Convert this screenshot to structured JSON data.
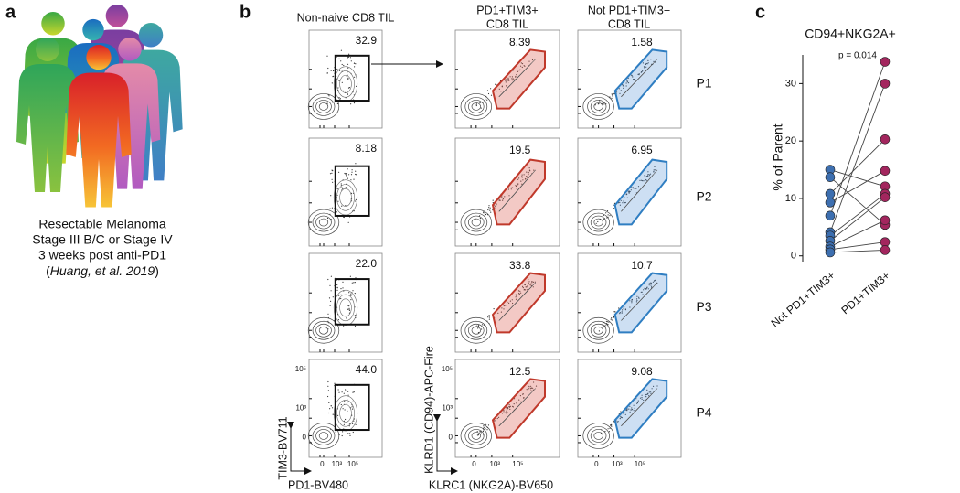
{
  "panel_a": {
    "label": "a",
    "caption": [
      "Resectable Melanoma",
      "Stage III B/C or Stage IV",
      "3 weeks post anti-PD1"
    ],
    "citation": [
      "(",
      "Huang, et al. 2019",
      ")"
    ]
  },
  "panel_b": {
    "label": "b",
    "columns": [
      [
        "Non-naive CD8 TIL"
      ],
      [
        "PD1+TIM3+",
        "CD8 TIL"
      ],
      [
        "Not PD1+TIM3+",
        "CD8 TIL"
      ]
    ],
    "rows": [
      "P1",
      "P2",
      "P3",
      "P4"
    ],
    "gates": [
      [
        "32.9",
        "8.39",
        "1.58"
      ],
      [
        "8.18",
        "19.5",
        "6.95"
      ],
      [
        "22.0",
        "33.8",
        "10.7"
      ],
      [
        "44.0",
        "12.5",
        "9.08"
      ]
    ],
    "tick_labels": [
      "0",
      "10³",
      "10⁵"
    ],
    "axis_labels": {
      "x1": "PD1-BV480",
      "y1": "TIM3-BV711",
      "x2": "KLRC1 (NKG2A)-BV650",
      "y2": "KLRD1 (CD94)-APC-Fire"
    }
  },
  "chart_data": {
    "type": "paired-dot",
    "label": "c",
    "title": "CD94+NKG2A+",
    "annotation": "p = 0.014",
    "y_label": "% of Parent",
    "categories": [
      "Not PD1+TIM3+",
      "PD1+TIM3+"
    ],
    "colors": [
      "#3d6fb0",
      "#a3265e"
    ],
    "values": [
      [
        15.0,
        12.1
      ],
      [
        13.7,
        5.4
      ],
      [
        10.8,
        20.3
      ],
      [
        9.3,
        14.8
      ],
      [
        7.0,
        33.8
      ],
      [
        4.1,
        30.0
      ],
      [
        3.5,
        10.8
      ],
      [
        2.6,
        10.2
      ],
      [
        1.6,
        6.2
      ],
      [
        1.1,
        2.4
      ],
      [
        0.6,
        1.0
      ]
    ],
    "ylim": [
      -1,
      35
    ],
    "yticks": [
      0,
      10,
      20,
      30
    ]
  }
}
